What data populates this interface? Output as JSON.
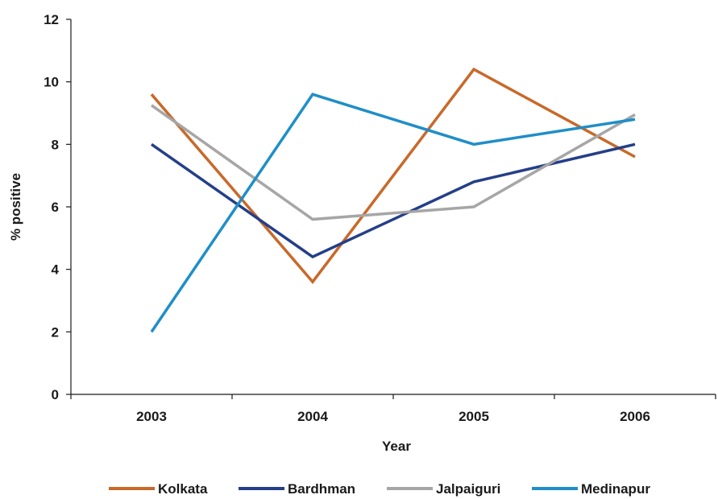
{
  "chart_data": {
    "type": "line",
    "title": "",
    "xlabel": "Year",
    "ylabel": "% positive",
    "categories": [
      "2003",
      "2004",
      "2005",
      "2006"
    ],
    "ylim": [
      0,
      12
    ],
    "yticks": [
      0,
      2,
      4,
      6,
      8,
      10,
      12
    ],
    "grid": false,
    "legend_position": "bottom",
    "series": [
      {
        "name": "Kolkata",
        "color": "#C8692A",
        "values": [
          9.6,
          3.6,
          10.4,
          7.6
        ]
      },
      {
        "name": "Bardhman",
        "color": "#243F88",
        "values": [
          8.0,
          4.4,
          6.8,
          8.0
        ]
      },
      {
        "name": "Jalpaiguri",
        "color": "#A6A6A6",
        "values": [
          9.25,
          5.6,
          6.0,
          8.95
        ]
      },
      {
        "name": "Medinapur",
        "color": "#1F8EC8",
        "values": [
          2.0,
          9.6,
          8.0,
          8.8
        ]
      }
    ]
  }
}
